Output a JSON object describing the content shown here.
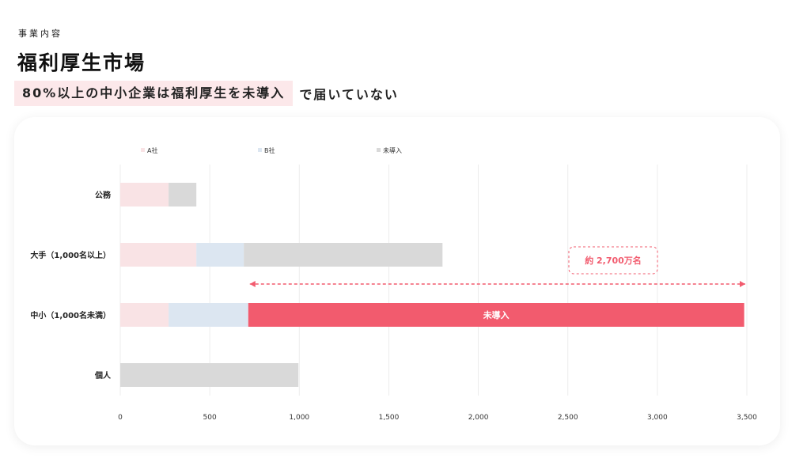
{
  "header": {
    "section_label": "事業内容",
    "title": "福利厚生市場",
    "subtitle_highlight": "80%以上の中小企業は福利厚生を未導入",
    "subtitle_tail": "で届いていない"
  },
  "colors": {
    "a_company": "#f9e3e5",
    "b_company": "#dce6f1",
    "not_introduced": "#d9d9d9",
    "highlight_bar": "#f25b6e",
    "accent": "#f25b6e"
  },
  "chart_data": {
    "type": "bar",
    "orientation": "horizontal",
    "stacked": true,
    "categories": [
      "公務",
      "大手（1,000名以上）",
      "中小（1,000名未満）",
      "個人"
    ],
    "series": [
      {
        "name": "A社",
        "values": [
          270,
          425,
          270,
          0
        ]
      },
      {
        "name": "B社",
        "values": [
          0,
          265,
          445,
          0
        ]
      },
      {
        "name": "未導入",
        "values": [
          155,
          1110,
          2770,
          995
        ]
      }
    ],
    "xlim": [
      0,
      3500
    ],
    "xticks": [
      "0",
      "500",
      "1,000",
      "1,500",
      "2,000",
      "2,500",
      "3,000",
      "3,500"
    ],
    "legend_position": "top",
    "grid": true,
    "highlight": {
      "category_index": 2,
      "series_index": 2,
      "label": "未導入"
    },
    "annotation": {
      "label": "約 2,700万名",
      "from": 715,
      "to": 3500
    }
  }
}
